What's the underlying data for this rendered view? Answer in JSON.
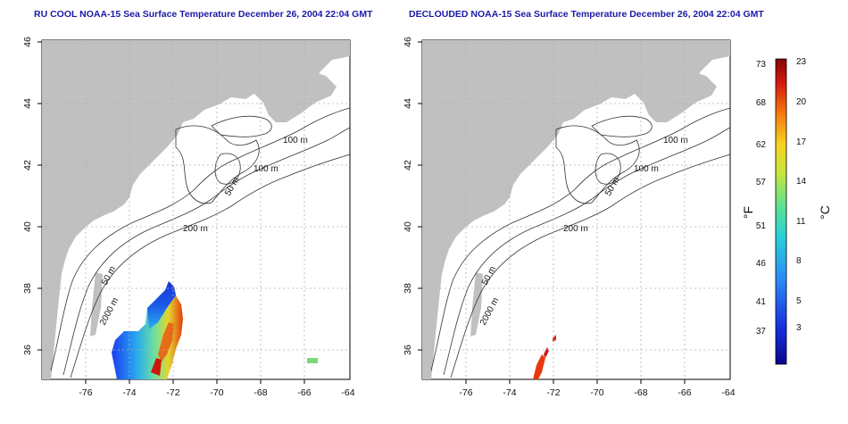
{
  "panels": [
    {
      "title": "RU COOL NOAA-15 Sea Surface Temperature December 26, 2004 22:04 GMT",
      "contour_labels": [
        "100 m",
        "100 m",
        "50 m",
        "200 m",
        "50 m",
        "2000 m"
      ]
    },
    {
      "title": "DECLOUDED NOAA-15 Sea Surface Temperature December 26, 2004 22:04 GMT",
      "contour_labels": [
        "100 m",
        "100 m",
        "50 m",
        "200 m",
        "50 m",
        "2000 m"
      ]
    }
  ],
  "axes": {
    "lon_ticks": [
      "-76",
      "-74",
      "-72",
      "-70",
      "-68",
      "-66",
      "-64"
    ],
    "lat_ticks": [
      "36",
      "38",
      "40",
      "42",
      "44",
      "46"
    ]
  },
  "colorbar": {
    "left_unit": "°F",
    "right_unit": "°C",
    "f_ticks": [
      "73",
      "68",
      "62",
      "57",
      "51",
      "46",
      "41",
      "37"
    ],
    "c_ticks": [
      "23",
      "20",
      "17",
      "14",
      "11",
      "8",
      "5",
      "3"
    ]
  },
  "colors": {
    "land": "#c0c0c0",
    "title": "#1a1aa8",
    "grid": "#b0b0b0"
  }
}
